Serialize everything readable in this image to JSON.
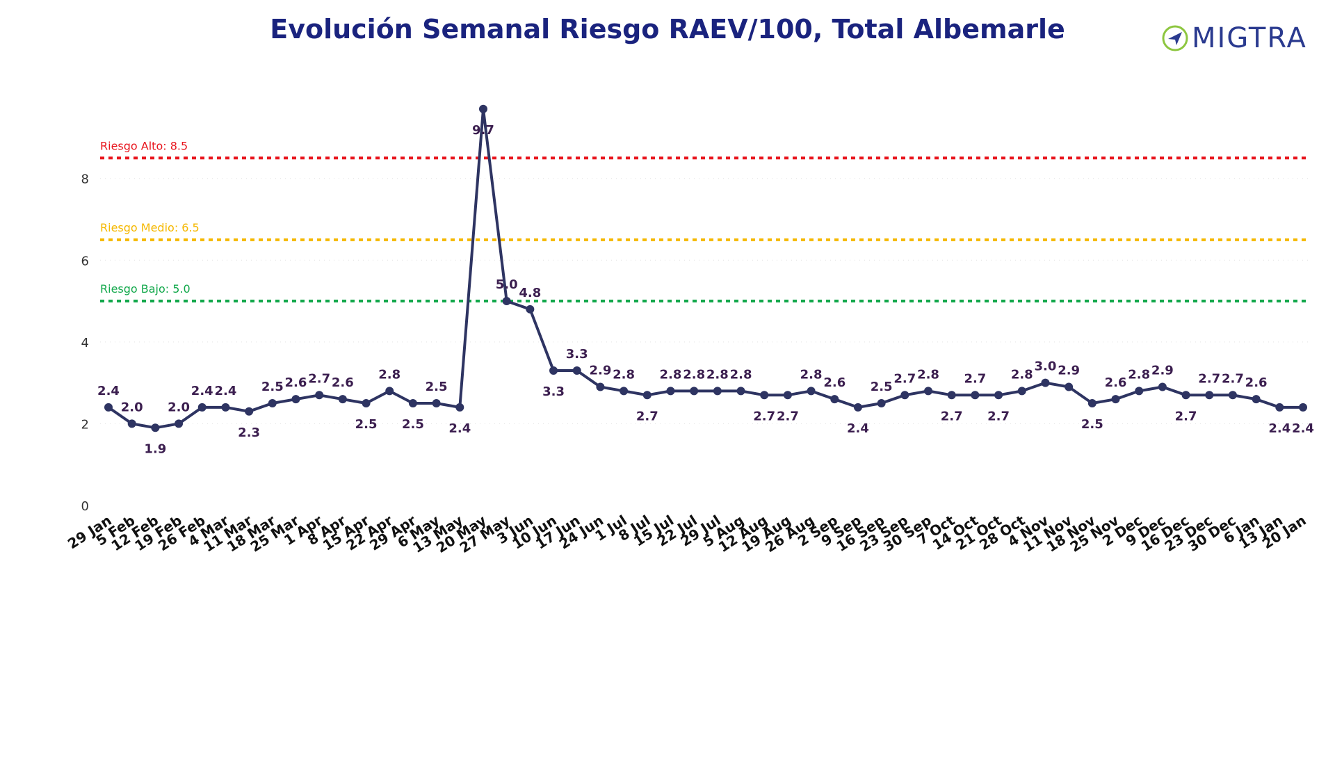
{
  "brand": {
    "name": "MIGTRA",
    "logo_icon": "migtra-compass-icon",
    "color": "#2a3a8f",
    "accent": "#8dc63f"
  },
  "chart_data": {
    "type": "line",
    "title": "Evolución Semanal Riesgo RAEV/100, Total Albemarle",
    "xlabel": "",
    "ylabel": "",
    "ylim": [
      0,
      9.9
    ],
    "yticks": [
      0,
      2,
      4,
      6,
      8
    ],
    "grid": true,
    "legend": "none",
    "categories": [
      "29 Jan",
      "5 Feb",
      "12 Feb",
      "19 Feb",
      "26 Feb",
      "4 Mar",
      "11 Mar",
      "18 Mar",
      "25 Mar",
      "1 Apr",
      "8 Apr",
      "15 Apr",
      "22 Apr",
      "29 Apr",
      "6 May",
      "13 May",
      "20 May",
      "27 May",
      "3 Jun",
      "10 Jun",
      "17 Jun",
      "24 Jun",
      "1 Jul",
      "8 Jul",
      "15 Jul",
      "22 Jul",
      "29 Jul",
      "5 Aug",
      "12 Aug",
      "19 Aug",
      "26 Aug",
      "2 Sep",
      "9 Sep",
      "16 Sep",
      "23 Sep",
      "30 Sep",
      "7 Oct",
      "14 Oct",
      "21 Oct",
      "28 Oct",
      "4 Nov",
      "11 Nov",
      "18 Nov",
      "25 Nov",
      "2 Dec",
      "9 Dec",
      "16 Dec",
      "23 Dec",
      "30 Dec",
      "6 Jan",
      "13 Jan",
      "20 Jan"
    ],
    "series": [
      {
        "name": "",
        "color": "#2e3462",
        "values": [
          2.4,
          2.0,
          1.9,
          2.0,
          2.4,
          2.4,
          2.3,
          2.5,
          2.6,
          2.7,
          2.6,
          2.5,
          2.8,
          2.5,
          2.5,
          2.4,
          9.7,
          5.0,
          4.8,
          3.3,
          3.3,
          2.9,
          2.8,
          2.7,
          2.8,
          2.8,
          2.8,
          2.8,
          2.7,
          2.7,
          2.8,
          2.6,
          2.4,
          2.5,
          2.7,
          2.8,
          2.7,
          2.7,
          2.7,
          2.8,
          3.0,
          2.9,
          2.5,
          2.6,
          2.8,
          2.9,
          2.7,
          2.7,
          2.7,
          2.6,
          2.4,
          2.4
        ]
      }
    ],
    "thresholds": [
      {
        "label": "Riesgo Alto: 8.5",
        "value": 8.5,
        "color": "#e8141c"
      },
      {
        "label": "Riesgo Medio: 6.5",
        "value": 6.5,
        "color": "#f5b800"
      },
      {
        "label": "Riesgo Bajo: 5.0",
        "value": 5.0,
        "color": "#12a84b"
      }
    ]
  }
}
